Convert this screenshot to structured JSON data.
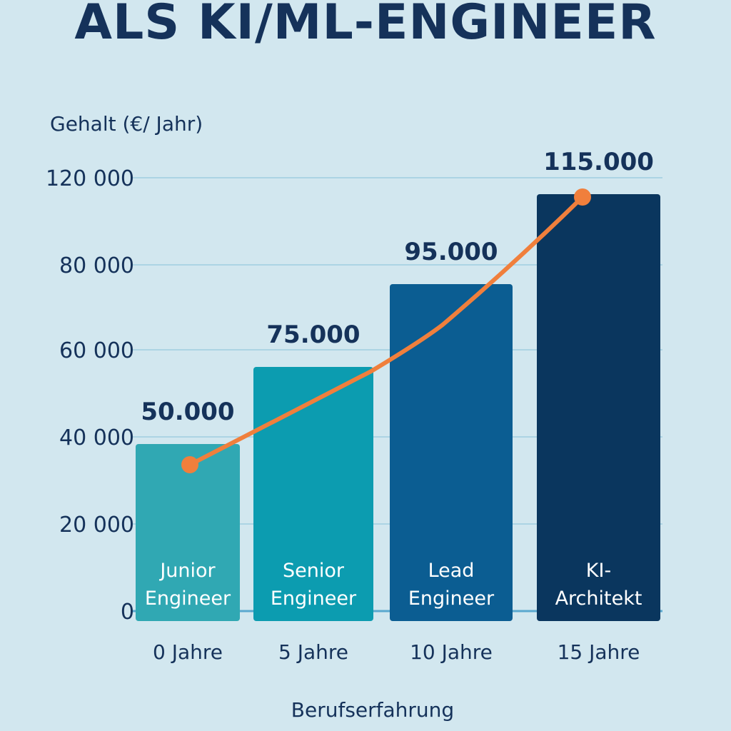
{
  "title": "ALS KI/ML-ENGINEER",
  "chart_data": {
    "type": "bar",
    "ylabel": "Gehalt (€/ Jahr)",
    "xlabel": "Berufserfahrung",
    "ylim": [
      0,
      120000
    ],
    "yticks": [
      0,
      20000,
      40000,
      60000,
      80000,
      120000
    ],
    "ytick_labels": [
      "0",
      "20 000",
      "40 000",
      "60 000",
      "80 000",
      "120 000"
    ],
    "grid": true,
    "categories": [
      "0 Jahre",
      "5 Jahre",
      "10 Jahre",
      "15 Jahre"
    ],
    "bar_labels": [
      "Junior Engineer",
      "Senior Engineer",
      "Lead Engineer",
      "KI-Architekt"
    ],
    "bar_label_lines": [
      [
        "Junior",
        "Engineer"
      ],
      [
        "Senior",
        "Engineer"
      ],
      [
        "Lead",
        "Engineer"
      ],
      [
        "KI-",
        "Architekt"
      ]
    ],
    "values": [
      50000,
      75000,
      95000,
      115000
    ],
    "value_labels": [
      "50.000",
      "75.000",
      "95.000",
      "115.000"
    ],
    "bar_colors": [
      "#30a8b3",
      "#0c9cb0",
      "#0b5d92",
      "#0a365e"
    ],
    "line": {
      "color": "#f07f3c",
      "values": [
        50000,
        75000,
        95000,
        115000
      ]
    }
  }
}
